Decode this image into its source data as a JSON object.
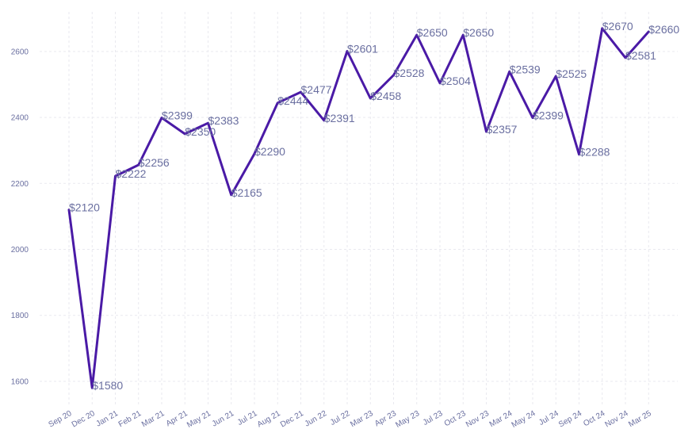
{
  "chart_data": {
    "type": "line",
    "title": "",
    "xlabel": "",
    "ylabel": "",
    "value_prefix": "$",
    "ylim": [
      1530,
      2720
    ],
    "yticks": [
      1600,
      1800,
      2000,
      2200,
      2400,
      2600
    ],
    "grid": true,
    "legend": "none",
    "line_color": "#4a1aa6",
    "categories": [
      "Sep 20",
      "Dec 20",
      "Jan 21",
      "Feb 21",
      "Mar 21",
      "Apr 21",
      "May 21",
      "Jun 21",
      "Jul 21",
      "Aug 21",
      "Dec 21",
      "Jun 22",
      "Jul 22",
      "Mar 23",
      "Apr 23",
      "May 23",
      "Jul 23",
      "Oct 23",
      "Nov 23",
      "Mar 24",
      "May 24",
      "Jul 24",
      "Sep 24",
      "Oct 24",
      "Nov 24",
      "Mar 25"
    ],
    "series": [
      {
        "values": [
          2120,
          1580,
          2222,
          2256,
          2399,
          2350,
          2383,
          2165,
          2290,
          2444,
          2477,
          2391,
          2601,
          2458,
          2528,
          2650,
          2504,
          2650,
          2357,
          2539,
          2399,
          2525,
          2288,
          2670,
          2581,
          2660
        ]
      }
    ]
  }
}
